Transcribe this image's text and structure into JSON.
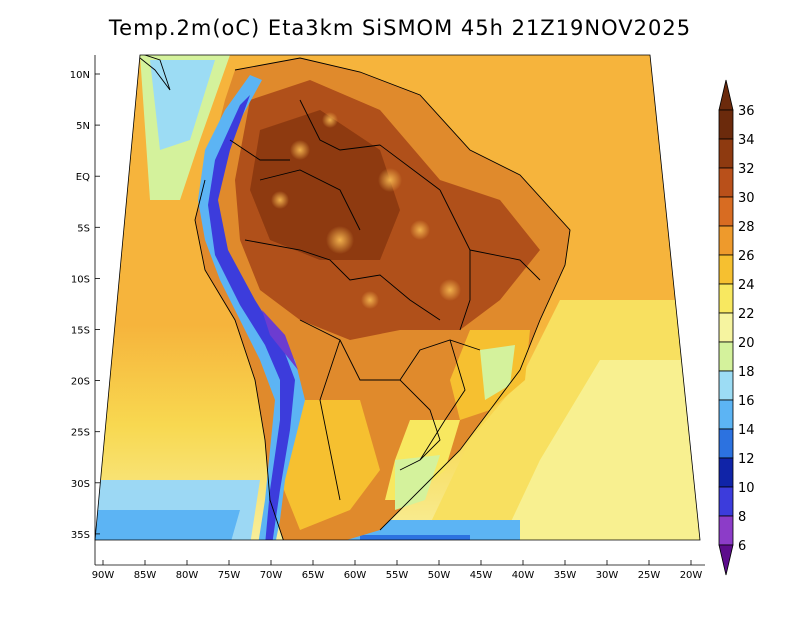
{
  "title": "Temp.2m(oC) Eta3km SiSMOM 45h 21Z19NOV2025",
  "lat_labels": [
    "10N",
    "5N",
    "EQ",
    "5S",
    "10S",
    "15S",
    "20S",
    "25S",
    "30S",
    "35S"
  ],
  "lon_labels": [
    "90W",
    "85W",
    "80W",
    "75W",
    "70W",
    "65W",
    "60W",
    "55W",
    "50W",
    "45W",
    "40W",
    "35W",
    "30W",
    "25W",
    "20W"
  ],
  "colorbar": {
    "labels": [
      "36",
      "34",
      "32",
      "30",
      "28",
      "26",
      "24",
      "22",
      "20",
      "18",
      "16",
      "14",
      "12",
      "10",
      "8",
      "6"
    ],
    "colors": [
      "#6b2a0c",
      "#8e3a10",
      "#b9501a",
      "#d86c22",
      "#ee9a2c",
      "#f6c030",
      "#f8e860",
      "#f6f4a0",
      "#d4f29c",
      "#9cdcf4",
      "#5cb4f4",
      "#2c72e0",
      "#1024a8",
      "#3c3cdc",
      "#8c3cc8",
      "#5c0c8c"
    ]
  },
  "colors": {
    "ocean_warm": "#f6b43c",
    "ocean_cool": "#f8e860",
    "land_hot": "#c0561c",
    "andes": "#6c3cd0"
  }
}
